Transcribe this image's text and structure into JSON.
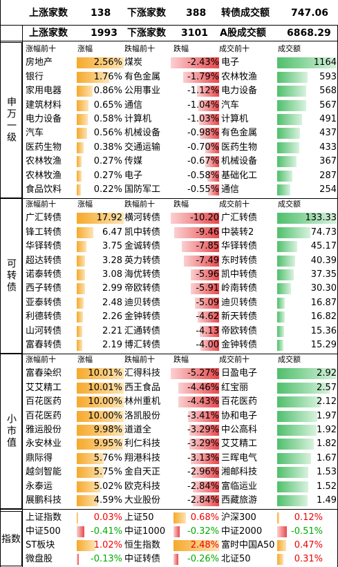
{
  "summary": [
    {
      "up_label": "上涨家数",
      "up": "138",
      "down_label": "下涨家数",
      "down": "388",
      "vol_label": "转债成交额",
      "vol": "747.06"
    },
    {
      "up_label": "上涨家数",
      "up": "1993",
      "down_label": "下涨家数",
      "down": "3101",
      "vol_label": "A股成交额",
      "vol": "6868.29"
    }
  ],
  "sections": [
    {
      "name": "申万一级",
      "headers": [
        "涨幅前十",
        "涨幅",
        "跌幅前十",
        "跌幅",
        "成交前十",
        "成交额"
      ],
      "rows": [
        [
          "房地产",
          "2.56%",
          "煤炭",
          "-2.43%",
          "电子",
          "1164"
        ],
        [
          "银行",
          "1.76%",
          "有色金属",
          "-1.79%",
          "农林牧渔",
          "593"
        ],
        [
          "家用电器",
          "0.86%",
          "公用事业",
          "-1.12%",
          "电力设备",
          "568"
        ],
        [
          "建筑材料",
          "0.65%",
          "通信",
          "-1.04%",
          "汽车",
          "567"
        ],
        [
          "电力设备",
          "0.58%",
          "计算机",
          "-1.03%",
          "计算机",
          "491"
        ],
        [
          "汽车",
          "0.56%",
          "机械设备",
          "-0.98%",
          "有色金属",
          "437"
        ],
        [
          "医药生物",
          "0.38%",
          "交通运输",
          "-0.70%",
          "医药生物",
          "433"
        ],
        [
          "农林牧渔",
          "0.27%",
          "传媒",
          "-0.67%",
          "机械设备",
          "367"
        ],
        [
          "农林牧渔",
          "0.27%",
          "电子",
          "-0.58%",
          "基础化工",
          "287"
        ],
        [
          "食品饮料",
          "0.22%",
          "国防军工",
          "-0.55%",
          "通信",
          "254"
        ]
      ]
    },
    {
      "name": "可转债",
      "headers": [
        "涨幅前十",
        "涨幅",
        "跌幅前十",
        "跌幅",
        "成交前十",
        "成交额"
      ],
      "rows": [
        [
          "广汇转债",
          "17.92",
          "横河转债",
          "-10.20",
          "广汇转债",
          "133.33"
        ],
        [
          "锋工转债",
          "6.47",
          "凯中转债",
          "-9.46",
          "中装转2",
          "74.73"
        ],
        [
          "华铎转债",
          "3.75",
          "金诚转债",
          "-7.85",
          "华铎转债",
          "45.17"
        ],
        [
          "超达转债",
          "3.28",
          "英力转债",
          "-7.49",
          "东时转债",
          "40.39"
        ],
        [
          "诺泰转债",
          "3.08",
          "海优转债",
          "-5.96",
          "凯中转债",
          "37.35"
        ],
        [
          "西子转债",
          "2.99",
          "帝欧转债",
          "-5.91",
          "岭南转债",
          "30.30"
        ],
        [
          "亚泰转债",
          "2.48",
          "迪贝转债",
          "-5.09",
          "迪贝转债",
          "16.87"
        ],
        [
          "利德转债",
          "2.26",
          "金钟转债",
          "-4.62",
          "新天转债",
          "16.82"
        ],
        [
          "山河转债",
          "2.21",
          "汇通转债",
          "-4.13",
          "帝欧转债",
          "15.36"
        ],
        [
          "富春转债",
          "2.19",
          "博汇转债",
          "-4.00",
          "金钟转债",
          "15.29"
        ]
      ]
    },
    {
      "name": "小市值",
      "headers": [
        "涨幅前十",
        "涨幅",
        "跌幅前十",
        "跌幅",
        "成交前十",
        "成交额"
      ],
      "rows": [
        [
          "富春染织",
          "10.01%",
          "汇得科技",
          "-5.27%",
          "日盈电子",
          "2.92"
        ],
        [
          "艾艾精工",
          "10.01%",
          "西王食品",
          "-4.46%",
          "红宝丽",
          "2.57"
        ],
        [
          "百花医药",
          "10.00%",
          "林州重机",
          "-4.43%",
          "百花医药",
          "2.12"
        ],
        [
          "百花医药",
          "10.00%",
          "洛凯股份",
          "-3.41%",
          "协和电子",
          "1.97"
        ],
        [
          "雅运股份",
          "9.98%",
          "道道全",
          "-3.29%",
          "中公高科",
          "1.92"
        ],
        [
          "永安林业",
          "9.95%",
          "利仁科技",
          "-3.29%",
          "艾艾精工",
          "1.82"
        ],
        [
          "鼎际得",
          "5.76%",
          "翔港科技",
          "-3.13%",
          "三晖电气",
          "1.67"
        ],
        [
          "越剑智能",
          "5.75%",
          "金自天正",
          "-2.96%",
          "湘邮科技",
          "1.53"
        ],
        [
          "永泰运",
          "5.02%",
          "欧克科技",
          "-2.84%",
          "富临运业",
          "1.52"
        ],
        [
          "展鹏科技",
          "4.59%",
          "大业股份",
          "-2.84%",
          "西藏旅游",
          "1.49"
        ]
      ]
    }
  ],
  "indices": {
    "name": "指数",
    "rows": [
      [
        "上证指数",
        "0.03%",
        "上证50",
        "0.68%",
        "沪深300",
        "0.12%"
      ],
      [
        "中证500",
        "-0.41%",
        "中证1000",
        "-0.32%",
        "中证2000",
        "-0.51%"
      ],
      [
        "ST板块",
        "1.02%",
        "恒生指数",
        "2.48%",
        "富时中国A50",
        "0.47%"
      ],
      [
        "微盘股",
        "-0.13%",
        "中证转债",
        "-0.26%",
        "北证50",
        "0.31%"
      ]
    ]
  },
  "bars": {
    "s0_up": [
      1.0,
      0.69,
      0.34,
      0.25,
      0.23,
      0.22,
      0.15,
      0.11,
      0.11,
      0.09
    ],
    "s0_dn": [
      1.0,
      0.74,
      0.46,
      0.43,
      0.42,
      0.4,
      0.29,
      0.28,
      0.24,
      0.23
    ],
    "s0_amt": [
      1.0,
      0.51,
      0.49,
      0.49,
      0.42,
      0.38,
      0.37,
      0.32,
      0.25,
      0.22
    ],
    "s1_up": [
      1.0,
      0.36,
      0.21,
      0.18,
      0.17,
      0.17,
      0.14,
      0.13,
      0.12,
      0.12
    ],
    "s1_dn": [
      1.0,
      0.93,
      0.77,
      0.73,
      0.58,
      0.58,
      0.5,
      0.45,
      0.4,
      0.39
    ],
    "s1_amt": [
      1.0,
      0.56,
      0.34,
      0.3,
      0.28,
      0.23,
      0.13,
      0.13,
      0.12,
      0.11
    ],
    "s2_up": [
      1.0,
      1.0,
      1.0,
      1.0,
      1.0,
      0.99,
      0.58,
      0.57,
      0.5,
      0.46
    ],
    "s2_dn": [
      1.0,
      0.85,
      0.84,
      0.65,
      0.62,
      0.62,
      0.59,
      0.56,
      0.54,
      0.54
    ],
    "s2_amt": [
      1.0,
      0.88,
      0.73,
      0.67,
      0.66,
      0.62,
      0.57,
      0.52,
      0.52,
      0.51
    ],
    "idx": [
      [
        0.01,
        0.28,
        0.05
      ],
      [
        -0.17,
        -0.13,
        -0.21
      ],
      [
        0.41,
        1.0,
        0.19
      ],
      [
        -0.05,
        -0.1,
        0.13
      ]
    ]
  },
  "colors": {
    "up": "#f6a92c",
    "down": "#e7494c",
    "amount": "#4fbf6b"
  }
}
